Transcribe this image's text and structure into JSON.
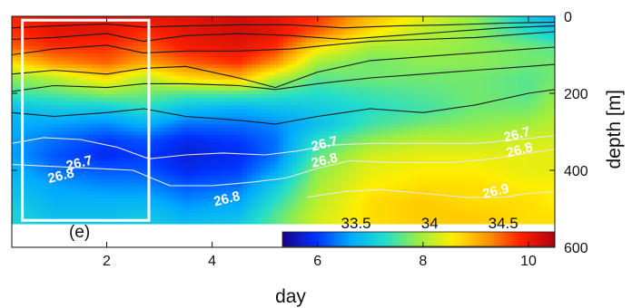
{
  "chart_data": {
    "type": "heatmap",
    "panel_label": "(e)",
    "xlabel": "day",
    "ylabel": "depth [m]",
    "xlim": [
      0.2,
      10.5
    ],
    "ylim": [
      600,
      0
    ],
    "data_depth_max": 540,
    "x_ticks": [
      2,
      4,
      6,
      8,
      10
    ],
    "y_ticks": [
      0,
      200,
      400,
      600
    ],
    "x_tick_labels": [
      "2",
      "4",
      "6",
      "8",
      "10"
    ],
    "y_tick_labels": [
      "0",
      "200",
      "400",
      "600"
    ],
    "colorbar": {
      "range": [
        33.0,
        34.85
      ],
      "ticks": [
        33.5,
        34,
        34.5
      ],
      "tick_labels": [
        "33.5",
        "34",
        "34.5"
      ],
      "colors": [
        "#1a0088",
        "#0033ff",
        "#00aaff",
        "#22ddcc",
        "#99ee44",
        "#ffee00",
        "#ff9900",
        "#ff2200",
        "#b00010"
      ]
    },
    "field": {
      "x": [
        0.2,
        1.0,
        2.0,
        2.7,
        3.5,
        4.5,
        5.2,
        6.0,
        7.0,
        8.0,
        9.0,
        10.0,
        10.5
      ],
      "depths": [
        0,
        40,
        80,
        120,
        160,
        200,
        240,
        280,
        320,
        360,
        400,
        440,
        480,
        520,
        540
      ],
      "values": [
        [
          34.6,
          34.7,
          34.7,
          34.7,
          34.7,
          34.75,
          34.7,
          34.6,
          34.3,
          34.1,
          33.9,
          33.6,
          33.5
        ],
        [
          34.6,
          34.7,
          34.7,
          34.6,
          34.7,
          34.75,
          34.7,
          34.5,
          34.2,
          34.0,
          33.9,
          33.7,
          33.6
        ],
        [
          34.5,
          34.6,
          34.6,
          34.5,
          34.65,
          34.7,
          34.6,
          34.2,
          33.95,
          33.95,
          33.9,
          33.85,
          33.8
        ],
        [
          34.2,
          34.4,
          34.5,
          34.35,
          34.5,
          34.6,
          34.4,
          33.95,
          33.85,
          33.9,
          33.9,
          33.85,
          33.85
        ],
        [
          33.9,
          34.0,
          34.2,
          34.0,
          34.2,
          34.3,
          34.0,
          33.8,
          33.85,
          33.85,
          33.85,
          33.8,
          33.85
        ],
        [
          33.75,
          33.8,
          33.9,
          33.85,
          33.8,
          33.8,
          33.75,
          33.7,
          33.75,
          33.8,
          33.85,
          33.8,
          33.9
        ],
        [
          33.55,
          33.6,
          33.6,
          33.7,
          33.55,
          33.5,
          33.55,
          33.6,
          33.7,
          33.75,
          33.85,
          33.85,
          33.95
        ],
        [
          33.5,
          33.45,
          33.4,
          33.5,
          33.35,
          33.35,
          33.4,
          33.55,
          33.75,
          33.85,
          33.9,
          33.95,
          34.0
        ],
        [
          33.45,
          33.35,
          33.25,
          33.3,
          33.2,
          33.25,
          33.35,
          33.7,
          33.9,
          34.0,
          34.0,
          34.05,
          34.05
        ],
        [
          33.45,
          33.3,
          33.2,
          33.25,
          33.15,
          33.2,
          33.35,
          33.8,
          34.05,
          34.1,
          34.1,
          34.1,
          34.1
        ],
        [
          33.5,
          33.35,
          33.3,
          33.3,
          33.2,
          33.25,
          33.45,
          33.9,
          34.1,
          34.15,
          34.15,
          34.1,
          34.1
        ],
        [
          33.55,
          33.45,
          33.4,
          33.4,
          33.3,
          33.35,
          33.6,
          33.95,
          34.15,
          34.2,
          34.2,
          34.15,
          34.15
        ],
        [
          33.6,
          33.5,
          33.5,
          33.5,
          33.4,
          33.45,
          33.7,
          34.0,
          34.2,
          34.25,
          34.2,
          34.2,
          34.15
        ],
        [
          33.65,
          33.55,
          33.55,
          33.6,
          33.5,
          33.55,
          33.8,
          34.05,
          34.2,
          34.25,
          34.25,
          34.2,
          34.2
        ],
        [
          33.65,
          33.6,
          33.6,
          33.6,
          33.55,
          33.6,
          33.8,
          34.05,
          34.2,
          34.25,
          34.25,
          34.2,
          34.2
        ]
      ]
    },
    "black_contours": [
      {
        "x": [
          0.2,
          1.0,
          2.0,
          2.7,
          3.5,
          4.5,
          5.5,
          6.5,
          7.5,
          8.5,
          9.5,
          10.5
        ],
        "y": [
          30,
          25,
          20,
          28,
          25,
          22,
          22,
          30,
          25,
          22,
          18,
          15
        ]
      },
      {
        "x": [
          0.2,
          1.0,
          2.0,
          2.7,
          3.5,
          4.5,
          5.5,
          6.5,
          7.5,
          8.5,
          9.5,
          10.5
        ],
        "y": [
          60,
          55,
          45,
          65,
          50,
          45,
          50,
          60,
          50,
          40,
          30,
          25
        ]
      },
      {
        "x": [
          0.2,
          1.0,
          2.0,
          2.7,
          3.5,
          4.5,
          5.5,
          6.2,
          7.0,
          8.0,
          9.0,
          10.0,
          10.5
        ],
        "y": [
          100,
          85,
          75,
          95,
          90,
          90,
          85,
          75,
          65,
          60,
          55,
          45,
          40
        ]
      },
      {
        "x": [
          0.2,
          1.0,
          2.0,
          2.7,
          3.5,
          4.5,
          5.2,
          6.0,
          7.0,
          8.0,
          9.0,
          10.0,
          10.5
        ],
        "y": [
          150,
          140,
          150,
          135,
          130,
          160,
          185,
          145,
          115,
          105,
          95,
          85,
          80
        ]
      },
      {
        "x": [
          0.2,
          1.0,
          2.0,
          2.7,
          3.5,
          4.5,
          5.2,
          6.0,
          7.0,
          8.0,
          9.0,
          10.0,
          10.5
        ],
        "y": [
          195,
          180,
          185,
          175,
          175,
          180,
          190,
          175,
          160,
          150,
          140,
          130,
          125
        ]
      },
      {
        "x": [
          0.2,
          1.0,
          2.0,
          2.7,
          3.5,
          4.5,
          5.2,
          6.0,
          7.0,
          8.0,
          9.0,
          10.0,
          10.5
        ],
        "y": [
          250,
          260,
          250,
          240,
          260,
          270,
          280,
          260,
          240,
          250,
          230,
          200,
          190
        ]
      }
    ],
    "white_contours": [
      {
        "x": [
          0.2,
          0.8,
          1.5,
          2.2,
          2.8,
          3.5,
          4.2,
          5.0,
          5.6,
          6.2,
          7.0,
          8.0,
          9.0,
          9.8,
          10.5
        ],
        "y": [
          330,
          315,
          320,
          340,
          370,
          360,
          355,
          360,
          350,
          335,
          330,
          330,
          330,
          320,
          310
        ]
      },
      {
        "x": [
          0.2,
          1.0,
          1.8,
          2.5,
          3.2,
          4.0,
          4.8,
          5.4,
          6.0,
          6.6,
          7.5,
          8.5,
          9.3,
          10.0,
          10.5
        ],
        "y": [
          385,
          390,
          395,
          400,
          440,
          440,
          430,
          420,
          395,
          375,
          380,
          380,
          370,
          355,
          345
        ]
      },
      {
        "x": [
          5.8,
          6.5,
          7.2,
          8.0,
          8.8,
          9.5,
          10.0,
          10.5
        ],
        "y": [
          470,
          455,
          450,
          460,
          470,
          470,
          460,
          455
        ]
      }
    ],
    "contour_labels": [
      {
        "text": "26.7",
        "x": 1.5,
        "y": 392
      },
      {
        "text": "26.8",
        "x": 1.15,
        "y": 425
      },
      {
        "text": "26.7",
        "x": 6.15,
        "y": 342
      },
      {
        "text": "26.8",
        "x": 6.15,
        "y": 385
      },
      {
        "text": "26.8",
        "x": 4.3,
        "y": 485
      },
      {
        "text": "26.7",
        "x": 9.8,
        "y": 318
      },
      {
        "text": "26.8",
        "x": 9.85,
        "y": 358
      },
      {
        "text": "26.9",
        "x": 9.4,
        "y": 465
      }
    ],
    "highlight_box": {
      "x": [
        0.4,
        2.8
      ],
      "y": [
        10,
        530
      ]
    }
  }
}
